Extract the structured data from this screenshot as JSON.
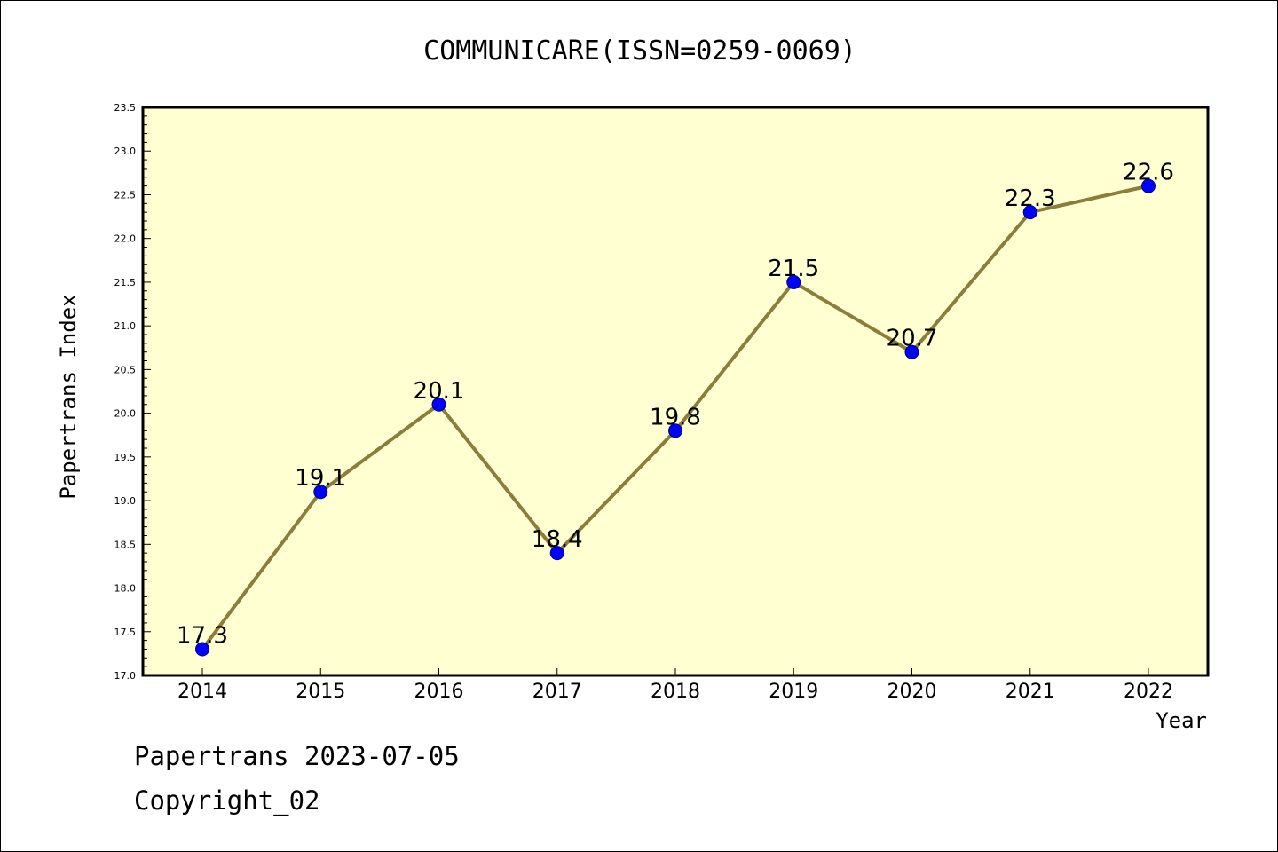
{
  "chart_data": {
    "type": "line",
    "title": "COMMUNICARE(ISSN=0259-0069)",
    "xlabel": "Year",
    "ylabel": "Papertrans Index",
    "categories": [
      "2014",
      "2015",
      "2016",
      "2017",
      "2018",
      "2019",
      "2020",
      "2021",
      "2022"
    ],
    "series": [
      {
        "values": [
          17.3,
          19.1,
          20.1,
          18.4,
          19.8,
          21.5,
          20.7,
          22.3,
          22.6
        ]
      }
    ],
    "data_labels": [
      "17.3",
      "19.1",
      "20.1",
      "18.4",
      "19.8",
      "21.5",
      "20.7",
      "22.3",
      "22.6"
    ],
    "ylim": [
      17.0,
      23.5
    ],
    "yticks": [
      "17.0",
      "17.5",
      "18.0",
      "18.5",
      "19.0",
      "19.5",
      "20.0",
      "20.5",
      "21.0",
      "21.5",
      "22.0",
      "22.5",
      "23.0",
      "23.5"
    ],
    "grid": false,
    "legend": "none",
    "colors": {
      "plot_background": "#ffffd2",
      "line": "#8b7d3a",
      "marker_fill": "#0000ff",
      "marker_edge": "#000080"
    }
  },
  "footer": {
    "line1": "Papertrans 2023-07-05",
    "line2": "Copyright_02"
  }
}
